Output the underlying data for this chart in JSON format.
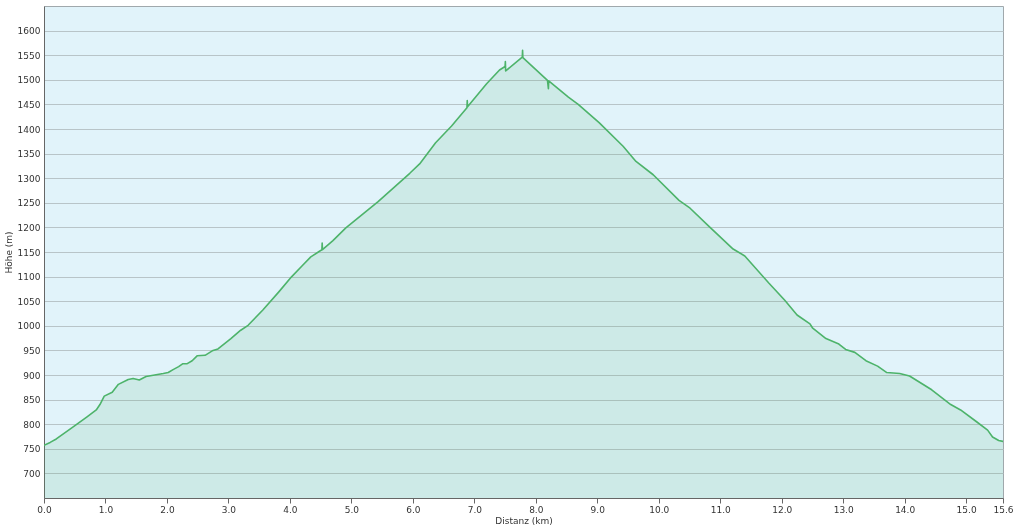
{
  "chart_data": {
    "type": "area",
    "xlabel": "Distanz  (km)",
    "ylabel": "Höhe (m)",
    "xlim": [
      0,
      15.6
    ],
    "ylim": [
      650,
      1650
    ],
    "xticks": [
      {
        "value": 0,
        "label": "0.0"
      },
      {
        "value": 1,
        "label": "1.0"
      },
      {
        "value": 2,
        "label": "2.0"
      },
      {
        "value": 3,
        "label": "3.0"
      },
      {
        "value": 4,
        "label": "4.0"
      },
      {
        "value": 5,
        "label": "5.0"
      },
      {
        "value": 6,
        "label": "6.0"
      },
      {
        "value": 7,
        "label": "7.0"
      },
      {
        "value": 8,
        "label": "8.0"
      },
      {
        "value": 9,
        "label": "9.0"
      },
      {
        "value": 10,
        "label": "10.0"
      },
      {
        "value": 11,
        "label": "11.0"
      },
      {
        "value": 12,
        "label": "12.0"
      },
      {
        "value": 13,
        "label": "13.0"
      },
      {
        "value": 14,
        "label": "14.0"
      },
      {
        "value": 15,
        "label": "15.0"
      },
      {
        "value": 15.6,
        "label": "15.6"
      }
    ],
    "yticks": [
      700,
      750,
      800,
      850,
      900,
      950,
      1000,
      1050,
      1100,
      1150,
      1200,
      1250,
      1300,
      1350,
      1400,
      1450,
      1500,
      1550,
      1600
    ],
    "grid": "y",
    "series": [
      {
        "color": "#4db36a",
        "x": [
          0.0,
          0.1,
          0.2,
          0.48,
          0.7,
          0.85,
          0.91,
          0.98,
          1.11,
          1.21,
          1.37,
          1.45,
          1.55,
          1.66,
          1.94,
          2.02,
          2.1,
          2.19,
          2.26,
          2.33,
          2.41,
          2.49,
          2.62,
          2.75,
          2.83,
          3.04,
          3.2,
          3.32,
          3.56,
          3.82,
          4.03,
          4.2,
          4.34,
          4.5,
          4.52,
          4.525,
          4.53,
          4.7,
          4.91,
          5.43,
          5.95,
          6.11,
          6.37,
          6.63,
          6.88,
          6.885,
          6.89,
          7.2,
          7.41,
          7.5,
          7.505,
          7.51,
          7.78,
          7.785,
          7.79,
          8.19,
          8.205,
          8.21,
          8.53,
          8.69,
          9.03,
          9.42,
          9.63,
          9.91,
          10.33,
          10.51,
          10.8,
          11.21,
          11.4,
          11.79,
          12.05,
          12.25,
          12.46,
          12.5,
          12.72,
          12.93,
          13.04,
          13.19,
          13.37,
          13.56,
          13.71,
          13.92,
          14.08,
          14.44,
          14.75,
          14.91,
          15.17,
          15.35,
          15.43,
          15.53,
          15.6
        ],
        "values": [
          757,
          763,
          770,
          795,
          815,
          829,
          840,
          857,
          865,
          881,
          891,
          893,
          890,
          897,
          903,
          905,
          911,
          917,
          923,
          923,
          929,
          939,
          940,
          950,
          953,
          974,
          991,
          1001,
          1032,
          1069,
          1100,
          1122,
          1140,
          1153,
          1154,
          1168,
          1155,
          1173,
          1199,
          1252,
          1310,
          1329,
          1372,
          1406,
          1443,
          1458,
          1445,
          1492,
          1520,
          1527,
          1537,
          1518,
          1546,
          1560,
          1545,
          1499,
          1482,
          1498,
          1465,
          1450,
          1413,
          1365,
          1334,
          1307,
          1255,
          1239,
          1204,
          1156,
          1142,
          1087,
          1052,
          1022,
          1004,
          996,
          974,
          963,
          952,
          946,
          929,
          918,
          905,
          903,
          898,
          870,
          840,
          829,
          805,
          788,
          774,
          767,
          765
        ]
      }
    ]
  }
}
